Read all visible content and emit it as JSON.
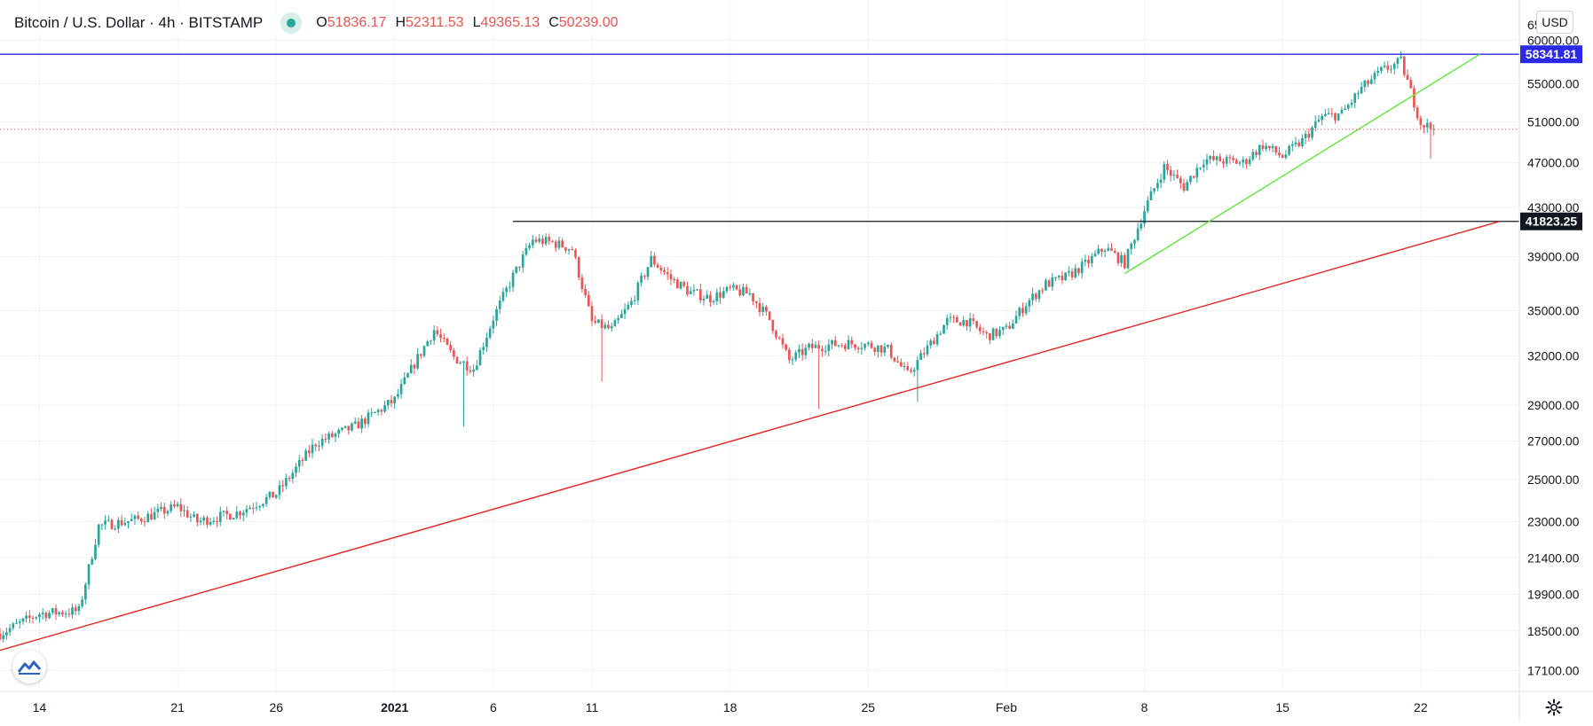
{
  "header": {
    "symbol_title": "Bitcoin / U.S. Dollar · 4h · BITSTAMP",
    "status_color": "#26a69a",
    "ohlc": [
      {
        "key": "O",
        "value": "51836.17"
      },
      {
        "key": "H",
        "value": "52311.53"
      },
      {
        "key": "L",
        "value": "49365.13"
      },
      {
        "key": "C",
        "value": "50239.00"
      }
    ]
  },
  "price_axis": {
    "currency_button": "USD",
    "top_clipped_label": "65"
  },
  "icons": {
    "logo": "tradingview-logo-icon",
    "settings": "gear-icon"
  },
  "colors": {
    "up": "#26a69a",
    "down": "#ef5350",
    "resistance_line": "#2a2ae6",
    "horizontal_line": "#131722",
    "uptrend_line": "#e8211f",
    "short_trend_line": "#5fe83c",
    "last_price_line": "#ef5350",
    "grid": "#f0f3fa"
  },
  "chart_data": {
    "type": "candlestick",
    "title": "Bitcoin / U.S. Dollar · 4h · BITSTAMP",
    "x_axis": {
      "type": "date",
      "range": [
        "2020-12-12",
        "2021-02-27"
      ],
      "tick_labels": [
        {
          "label": "14",
          "date": "2020-12-14"
        },
        {
          "label": "21",
          "date": "2020-12-21"
        },
        {
          "label": "26",
          "date": "2020-12-26"
        },
        {
          "label": "2021",
          "date": "2021-01-01",
          "bold": true
        },
        {
          "label": "6",
          "date": "2021-01-06"
        },
        {
          "label": "11",
          "date": "2021-01-11"
        },
        {
          "label": "18",
          "date": "2021-01-18"
        },
        {
          "label": "25",
          "date": "2021-01-25"
        },
        {
          "label": "Feb",
          "date": "2021-02-01"
        },
        {
          "label": "8",
          "date": "2021-02-08"
        },
        {
          "label": "15",
          "date": "2021-02-15"
        },
        {
          "label": "22",
          "date": "2021-02-22"
        }
      ]
    },
    "y_axis": {
      "scale": "log",
      "range": [
        16400,
        65000
      ],
      "tick_labels": [
        "60000.00",
        "55000.00",
        "51000.00",
        "47000.00",
        "43000.00",
        "39000.00",
        "35000.00",
        "32000.00",
        "29000.00",
        "27000.00",
        "25000.00",
        "23000.00",
        "21400.00",
        "19900.00",
        "18500.00",
        "17100.00"
      ]
    },
    "grid": true,
    "last_price": 50239.0,
    "anchors": [
      [
        "2020-12-12",
        18400
      ],
      [
        "2020-12-14",
        19150
      ],
      [
        "2020-12-16",
        19250
      ],
      [
        "2020-12-17",
        22800
      ],
      [
        "2020-12-19",
        23100
      ],
      [
        "2020-12-21",
        23700
      ],
      [
        "2020-12-22",
        23000
      ],
      [
        "2020-12-24",
        23400
      ],
      [
        "2020-12-26",
        24300
      ],
      [
        "2020-12-28",
        26900
      ],
      [
        "2020-12-30",
        27800
      ],
      [
        "2021-01-01",
        29300
      ],
      [
        "2021-01-02",
        31500
      ],
      [
        "2021-01-03",
        33700
      ],
      [
        "2021-01-04",
        31900
      ],
      [
        "2021-01-05",
        31200
      ],
      [
        "2021-01-06",
        34500
      ],
      [
        "2021-01-07",
        37500
      ],
      [
        "2021-01-08",
        40300
      ],
      [
        "2021-01-09",
        40100
      ],
      [
        "2021-01-10",
        39600
      ],
      [
        "2021-01-11",
        34200
      ],
      [
        "2021-01-12",
        33700
      ],
      [
        "2021-01-13",
        35600
      ],
      [
        "2021-01-14",
        38800
      ],
      [
        "2021-01-15",
        37300
      ],
      [
        "2021-01-16",
        36300
      ],
      [
        "2021-01-17",
        35900
      ],
      [
        "2021-01-18",
        36500
      ],
      [
        "2021-01-19",
        36200
      ],
      [
        "2021-01-20",
        34400
      ],
      [
        "2021-01-21",
        31700
      ],
      [
        "2021-01-22",
        32500
      ],
      [
        "2021-01-23",
        32700
      ],
      [
        "2021-01-24",
        32800
      ],
      [
        "2021-01-25",
        32700
      ],
      [
        "2021-01-26",
        32400
      ],
      [
        "2021-01-27",
        30800
      ],
      [
        "2021-01-28",
        32500
      ],
      [
        "2021-01-29",
        34300
      ],
      [
        "2021-01-30",
        34300
      ],
      [
        "2021-01-31",
        33300
      ],
      [
        "2021-02-01",
        33700
      ],
      [
        "2021-02-02",
        35500
      ],
      [
        "2021-02-03",
        36900
      ],
      [
        "2021-02-04",
        37400
      ],
      [
        "2021-02-05",
        38400
      ],
      [
        "2021-02-06",
        39700
      ],
      [
        "2021-02-07",
        38500
      ],
      [
        "2021-02-08",
        42800
      ],
      [
        "2021-02-09",
        46600
      ],
      [
        "2021-02-10",
        44800
      ],
      [
        "2021-02-11",
        47300
      ],
      [
        "2021-02-12",
        47200
      ],
      [
        "2021-02-13",
        47000
      ],
      [
        "2021-02-14",
        48700
      ],
      [
        "2021-02-15",
        47600
      ],
      [
        "2021-02-16",
        49100
      ],
      [
        "2021-02-17",
        51500
      ],
      [
        "2021-02-18",
        51800
      ],
      [
        "2021-02-19",
        54500
      ],
      [
        "2021-02-20",
        56400
      ],
      [
        "2021-02-21",
        57500
      ],
      [
        "2021-02-22",
        50900
      ],
      [
        "2021-02-22T16:00",
        50239
      ]
    ],
    "extreme_wicks": [
      {
        "date": "2021-01-04",
        "low": 27800
      },
      {
        "date": "2021-01-11",
        "low": 30400
      },
      {
        "date": "2021-01-22",
        "low": 28800
      },
      {
        "date": "2021-01-27",
        "low": 29200
      },
      {
        "date": "2021-02-08",
        "high": 44500
      },
      {
        "date": "2021-02-22",
        "low": 47400
      }
    ],
    "drawings": [
      {
        "name": "resistance-line",
        "type": "horizontal",
        "price": 58341.81,
        "label": "58341.81",
        "color": "#2a2ae6"
      },
      {
        "name": "breakout-level",
        "type": "horizontal_ray",
        "price": 41823.25,
        "from": "2021-01-07",
        "label": "41823.25",
        "color": "#131722"
      },
      {
        "name": "long-uptrend-line",
        "type": "trendline",
        "p1": [
          "2020-12-12",
          17800
        ],
        "p2": [
          "2021-02-26",
          41823.25
        ],
        "color": "#e8211f"
      },
      {
        "name": "short-uptrend-line",
        "type": "trendline",
        "p1": [
          "2021-02-07",
          37700
        ],
        "p2": [
          "2021-02-25",
          58341.81
        ],
        "color": "#5fe83c"
      }
    ]
  }
}
